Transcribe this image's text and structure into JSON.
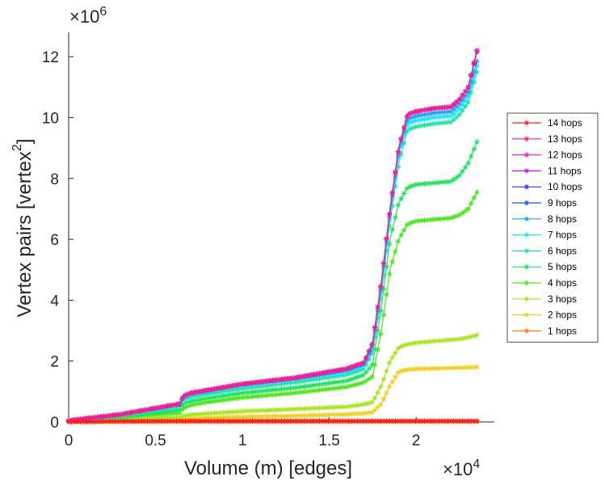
{
  "chart_data": {
    "type": "line",
    "title": "",
    "xlabel": "Volume (m) [edges]",
    "ylabel": "Vertex pairs [vertex",
    "ylabel_superscript": "2",
    "ylabel_close": "]",
    "x_multiplier": "×10",
    "x_multiplier_exp": "4",
    "y_multiplier": "×10",
    "y_multiplier_exp": "6",
    "xlim": [
      0,
      2.45
    ],
    "ylim": [
      0,
      12.8
    ],
    "x_ticks": [
      0,
      0.5,
      1,
      1.5,
      2
    ],
    "x_tick_labels": [
      "0",
      "0.5",
      "1",
      "1.5",
      "2"
    ],
    "y_ticks": [
      0,
      2,
      4,
      6,
      8,
      10,
      12
    ],
    "y_tick_labels": [
      "0",
      "2",
      "4",
      "6",
      "8",
      "10",
      "12"
    ],
    "marker": "asterisk",
    "legend_position": "right",
    "x": [
      0,
      0.3,
      0.64,
      0.66,
      0.7,
      0.8,
      1.0,
      1.3,
      1.6,
      1.7,
      1.75,
      1.8,
      1.85,
      1.9,
      1.95,
      2.0,
      2.1,
      2.2,
      2.25,
      2.3,
      2.35
    ],
    "series": [
      {
        "name": "14 hops",
        "color": "#ff1a1a",
        "values": [
          0.0,
          0.02,
          0.03,
          0.03,
          0.03,
          0.03,
          0.03,
          0.03,
          0.03,
          0.03,
          0.03,
          0.03,
          0.03,
          0.03,
          0.03,
          0.03,
          0.03,
          0.03,
          0.03,
          0.03,
          0.03
        ]
      },
      {
        "name": "13 hops",
        "color": "#ff1a8c",
        "values": [
          0.05,
          0.25,
          0.6,
          0.85,
          0.95,
          1.05,
          1.25,
          1.45,
          1.75,
          1.95,
          2.6,
          4.6,
          7.0,
          9.0,
          10.1,
          10.2,
          10.3,
          10.35,
          10.6,
          11.0,
          12.2
        ]
      },
      {
        "name": "12 hops",
        "color": "#ff1ad9",
        "values": [
          0.05,
          0.25,
          0.6,
          0.85,
          0.95,
          1.05,
          1.25,
          1.45,
          1.75,
          1.95,
          2.6,
          4.6,
          7.0,
          9.0,
          10.1,
          10.2,
          10.3,
          10.35,
          10.6,
          11.0,
          12.2
        ]
      },
      {
        "name": "11 hops",
        "color": "#b31aff",
        "values": [
          0.05,
          0.25,
          0.6,
          0.85,
          0.95,
          1.05,
          1.25,
          1.45,
          1.75,
          1.95,
          2.6,
          4.6,
          7.0,
          9.0,
          10.1,
          10.2,
          10.3,
          10.35,
          10.6,
          11.0,
          12.2
        ]
      },
      {
        "name": "10 hops",
        "color": "#5a1aff",
        "values": [
          0.05,
          0.25,
          0.6,
          0.85,
          0.95,
          1.05,
          1.25,
          1.45,
          1.75,
          1.95,
          2.6,
          4.6,
          7.0,
          9.0,
          10.1,
          10.2,
          10.3,
          10.35,
          10.6,
          11.0,
          12.2
        ]
      },
      {
        "name": "9 hops",
        "color": "#1a4dff",
        "values": [
          0.05,
          0.25,
          0.6,
          0.85,
          0.95,
          1.05,
          1.25,
          1.45,
          1.75,
          1.95,
          2.6,
          4.6,
          7.0,
          9.0,
          10.1,
          10.2,
          10.3,
          10.35,
          10.6,
          11.0,
          12.15
        ]
      },
      {
        "name": "8 hops",
        "color": "#1aa3ff",
        "values": [
          0.05,
          0.25,
          0.58,
          0.82,
          0.92,
          1.02,
          1.22,
          1.42,
          1.7,
          1.9,
          2.5,
          4.5,
          6.9,
          8.9,
          9.95,
          10.05,
          10.15,
          10.2,
          10.45,
          10.85,
          11.85
        ]
      },
      {
        "name": "7 hops",
        "color": "#1ae6ff",
        "values": [
          0.05,
          0.24,
          0.55,
          0.8,
          0.9,
          1.0,
          1.2,
          1.4,
          1.65,
          1.85,
          2.4,
          4.4,
          6.8,
          8.8,
          9.8,
          9.9,
          10.0,
          10.05,
          10.3,
          10.7,
          11.7
        ]
      },
      {
        "name": "6 hops",
        "color": "#1ae6a3",
        "values": [
          0.04,
          0.22,
          0.5,
          0.72,
          0.82,
          0.92,
          1.1,
          1.3,
          1.55,
          1.75,
          2.3,
          4.2,
          6.6,
          8.5,
          9.6,
          9.7,
          9.8,
          9.85,
          10.1,
          10.5,
          11.5
        ]
      },
      {
        "name": "5 hops",
        "color": "#1ae65a",
        "values": [
          0.03,
          0.18,
          0.4,
          0.6,
          0.68,
          0.78,
          0.95,
          1.12,
          1.35,
          1.55,
          1.9,
          3.8,
          6.0,
          7.2,
          7.7,
          7.8,
          7.85,
          7.9,
          8.1,
          8.5,
          9.2
        ]
      },
      {
        "name": "4 hops",
        "color": "#4de61a",
        "values": [
          0.02,
          0.15,
          0.3,
          0.45,
          0.55,
          0.65,
          0.8,
          0.95,
          1.15,
          1.3,
          1.5,
          3.0,
          5.0,
          6.0,
          6.5,
          6.6,
          6.65,
          6.7,
          6.8,
          7.0,
          7.55
        ]
      },
      {
        "name": "3 hops",
        "color": "#a8e61a",
        "values": [
          0.01,
          0.08,
          0.15,
          0.2,
          0.24,
          0.28,
          0.35,
          0.42,
          0.5,
          0.58,
          0.65,
          1.2,
          2.0,
          2.45,
          2.55,
          2.6,
          2.65,
          2.7,
          2.72,
          2.78,
          2.85
        ]
      },
      {
        "name": "2 hops",
        "color": "#f2d01a",
        "values": [
          0.005,
          0.04,
          0.08,
          0.1,
          0.12,
          0.14,
          0.17,
          0.2,
          0.25,
          0.28,
          0.32,
          0.6,
          1.2,
          1.65,
          1.72,
          1.74,
          1.76,
          1.77,
          1.78,
          1.79,
          1.8
        ]
      },
      {
        "name": "1 hops",
        "color": "#ff801a",
        "values": [
          0.002,
          0.005,
          0.01,
          0.01,
          0.01,
          0.01,
          0.01,
          0.01,
          0.01,
          0.01,
          0.01,
          0.01,
          0.01,
          0.01,
          0.01,
          0.01,
          0.01,
          0.01,
          0.01,
          0.01,
          0.01
        ]
      }
    ]
  }
}
